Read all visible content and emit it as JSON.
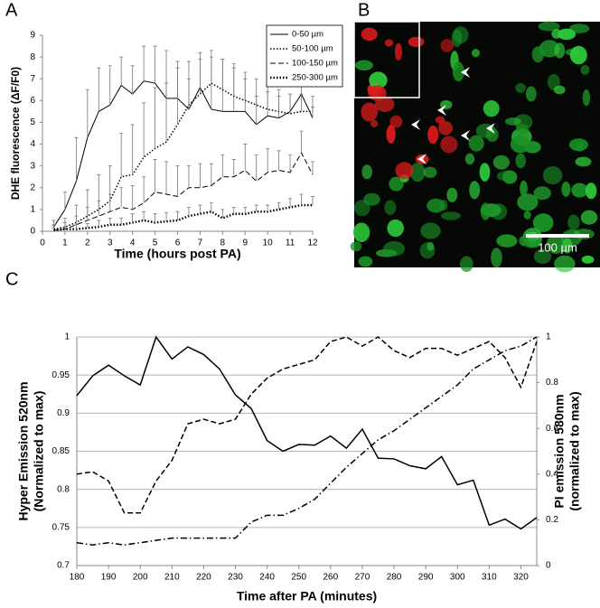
{
  "panels": {
    "a": "A",
    "b": "B",
    "c": "C"
  },
  "image": {
    "scale_bar": "100 µm"
  },
  "chart_data": [
    {
      "type": "line",
      "xlabel": "Time (hours post PA)",
      "ylabel": "DHE fluorescence (ΔF/F0)",
      "x": [
        0.5,
        1,
        1.5,
        2,
        2.5,
        3,
        3.5,
        4,
        4.5,
        5,
        5.5,
        6,
        6.5,
        7,
        7.5,
        8,
        8.5,
        9,
        9.5,
        10,
        10.5,
        11,
        11.5,
        12
      ],
      "xlim": [
        0,
        12
      ],
      "xticks": [
        0,
        1,
        2,
        3,
        4,
        5,
        6,
        7,
        8,
        9,
        10,
        11,
        12
      ],
      "ylim": [
        0,
        9
      ],
      "yticks": [
        0,
        1,
        2,
        3,
        4,
        5,
        6,
        7,
        8,
        9
      ],
      "grid": false,
      "legend": "upper right",
      "series": [
        {
          "name": "0-50 µm",
          "color": "#000000",
          "dash": "solid",
          "line_width": 1,
          "values": [
            0.2,
            1.0,
            2.3,
            4.3,
            5.5,
            5.8,
            6.7,
            6.3,
            6.9,
            6.8,
            6.1,
            6.1,
            5.6,
            6.6,
            5.6,
            5.5,
            5.5,
            5.5,
            4.9,
            5.3,
            5.2,
            5.5,
            6.3,
            5.2
          ],
          "errors": [
            0.3,
            0.8,
            2.0,
            2.2,
            2.0,
            1.8,
            1.3,
            1.3,
            1.6,
            1.7,
            2.2,
            1.7,
            1.4,
            1.3,
            2.4,
            2.4,
            2.2,
            1.5,
            1.3,
            1.1,
            1.0,
            0.8,
            0.6,
            0.5
          ]
        },
        {
          "name": "50-100 µm",
          "color": "#000000",
          "dash": "dotted",
          "line_width": 1.5,
          "values": [
            0.1,
            0.2,
            0.4,
            0.7,
            1.0,
            1.4,
            2.5,
            2.6,
            3.4,
            3.8,
            4.1,
            4.9,
            5.8,
            6.3,
            6.8,
            6.5,
            6.2,
            6.0,
            5.8,
            5.6,
            5.5,
            5.4,
            5.5,
            5.5
          ],
          "errors": [
            0.2,
            0.4,
            0.8,
            1.2,
            1.6,
            1.6,
            2.0,
            2.3,
            2.5,
            2.8,
            2.7,
            2.6,
            2.0,
            1.9,
            1.5,
            1.4,
            1.3,
            1.3,
            1.2,
            1.1,
            1.0,
            0.9,
            0.8,
            0.7
          ]
        },
        {
          "name": "100-150 µm",
          "color": "#000000",
          "dash": "dashed",
          "line_width": 1,
          "values": [
            0.05,
            0.1,
            0.3,
            0.5,
            0.7,
            0.9,
            1.1,
            1.0,
            1.3,
            1.8,
            1.7,
            1.6,
            2.0,
            2.0,
            2.1,
            2.5,
            2.5,
            2.8,
            2.3,
            2.7,
            2.8,
            2.7,
            3.6,
            2.6
          ],
          "errors": [
            0.2,
            0.3,
            0.4,
            0.6,
            0.7,
            0.8,
            0.9,
            1.1,
            1.2,
            1.5,
            1.5,
            1.4,
            1.0,
            1.1,
            1.0,
            1.0,
            0.8,
            1.2,
            1.2,
            1.1,
            0.9,
            0.8,
            1.0,
            0.6
          ]
        },
        {
          "name": "250-300 µm",
          "color": "#000000",
          "dash": "dotted",
          "line_width": 2.5,
          "values": [
            0.05,
            0.1,
            0.1,
            0.15,
            0.2,
            0.3,
            0.3,
            0.4,
            0.5,
            0.4,
            0.45,
            0.5,
            0.7,
            0.8,
            0.9,
            0.6,
            0.8,
            0.8,
            0.9,
            0.9,
            1.0,
            1.1,
            1.2,
            1.2
          ],
          "errors": [
            0.1,
            0.1,
            0.2,
            0.2,
            0.3,
            0.3,
            0.3,
            0.4,
            0.4,
            0.4,
            0.4,
            0.4,
            0.4,
            0.4,
            0.4,
            0.4,
            0.3,
            0.3,
            0.3,
            0.3,
            0.3,
            0.4,
            0.5,
            0.4
          ]
        }
      ]
    },
    {
      "type": "line",
      "xlabel": "Time after PA (minutes)",
      "ylabel": [
        "Hyper Emission 520nm",
        "(Normalized to max)"
      ],
      "y2label": [
        "PI emission 580nm",
        "(normalized to max)"
      ],
      "x": [
        180,
        185,
        190,
        195,
        200,
        205,
        210,
        215,
        220,
        225,
        230,
        235,
        240,
        245,
        250,
        255,
        260,
        265,
        270,
        275,
        280,
        285,
        290,
        295,
        300,
        305,
        310,
        315,
        320,
        325
      ],
      "xlim": [
        180,
        325
      ],
      "xticks": [
        180,
        190,
        200,
        210,
        220,
        230,
        240,
        250,
        260,
        270,
        280,
        290,
        300,
        310,
        320
      ],
      "ylim": [
        0.7,
        1
      ],
      "yticks": [
        0.7,
        0.75,
        0.8,
        0.85,
        0.9,
        0.95,
        1
      ],
      "y2lim": [
        0,
        1
      ],
      "y2ticks": [
        0,
        0.2,
        0.4,
        0.6,
        0.8,
        1
      ],
      "grid": true,
      "series": [
        {
          "color": "#000000",
          "dash": "solid",
          "line_width": 1.5,
          "values": [
            0.923,
            0.949,
            0.963,
            0.949,
            0.937,
            1.0,
            0.971,
            0.987,
            0.977,
            0.958,
            0.924,
            0.906,
            0.864,
            0.85,
            0.859,
            0.858,
            0.87,
            0.854,
            0.879,
            0.841,
            0.84,
            0.831,
            0.827,
            0.843,
            0.806,
            0.812,
            0.753,
            0.761,
            0.748,
            0.763
          ]
        },
        {
          "color": "#000000",
          "dash": "dashed",
          "line_width": 1.5,
          "axis": "y2",
          "values": [
            0.4,
            0.41,
            0.37,
            0.23,
            0.23,
            0.37,
            0.46,
            0.62,
            0.64,
            0.62,
            0.64,
            0.75,
            0.82,
            0.86,
            0.88,
            0.9,
            0.98,
            1.0,
            0.96,
            1.0,
            0.94,
            0.91,
            0.95,
            0.95,
            0.92,
            0.95,
            0.98,
            0.91,
            0.78,
            0.98
          ]
        },
        {
          "color": "#000000",
          "dash": "dashdot",
          "line_width": 1.5,
          "axis": "y2",
          "values": [
            0.1,
            0.09,
            0.1,
            0.09,
            0.1,
            0.11,
            0.12,
            0.12,
            0.12,
            0.12,
            0.12,
            0.19,
            0.22,
            0.22,
            0.25,
            0.29,
            0.36,
            0.43,
            0.49,
            0.55,
            0.59,
            0.64,
            0.69,
            0.74,
            0.79,
            0.86,
            0.9,
            0.94,
            0.96,
            1.0
          ]
        }
      ]
    }
  ]
}
